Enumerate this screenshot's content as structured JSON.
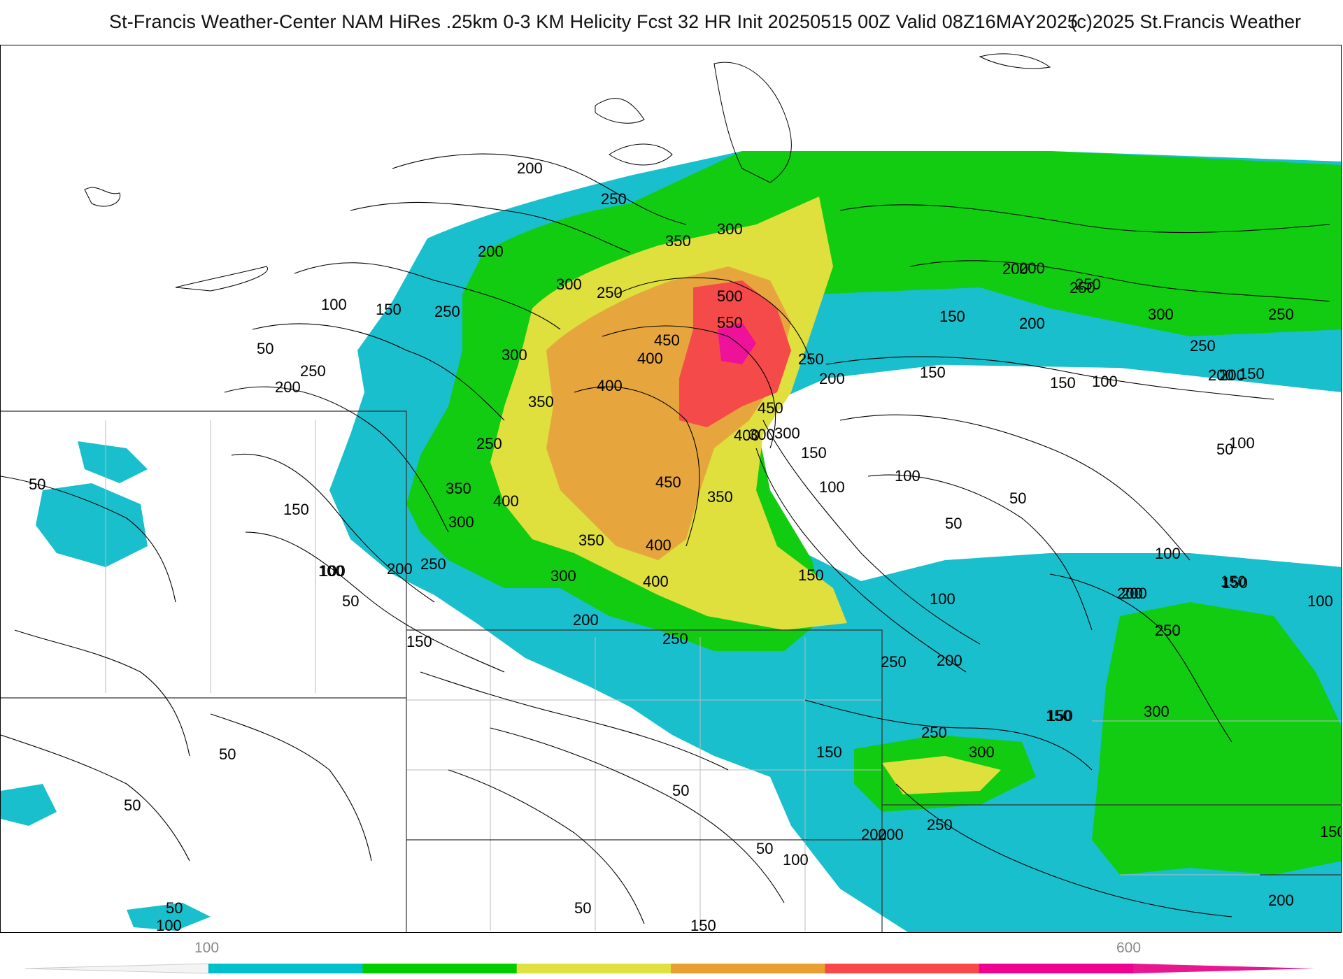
{
  "header": {
    "title": "St-Francis Weather-Center NAM HiRes .25km 0-3 KM Helicity Fcst 32 HR Init 20250515 00Z  Valid 08Z16MAY2025",
    "copyright": "(c)2025 St.Francis Weather"
  },
  "colorbar": {
    "min_label": "100",
    "max_label": "600",
    "colors": [
      "#00c0cc",
      "#00cc00",
      "#e0e040",
      "#e8a030",
      "#f84848",
      "#f00090"
    ]
  },
  "colors": {
    "band_150": "#19bfcc",
    "band_250": "#11cc11",
    "band_350": "#dfdf3e",
    "band_450": "#e6a63d",
    "band_500": "#f54a4a",
    "band_600": "#ee1199"
  },
  "contour_labels": [
    "200",
    "250",
    "350",
    "300",
    "200",
    "300",
    "250",
    "250",
    "100",
    "150",
    "50",
    "300",
    "250",
    "200",
    "500",
    "550",
    "450",
    "400",
    "400",
    "350",
    "250",
    "200",
    "300",
    "250",
    "450",
    "400",
    "300",
    "150",
    "350",
    "400",
    "450",
    "350",
    "300",
    "400",
    "350",
    "200",
    "250",
    "150",
    "50",
    "100",
    "150",
    "200",
    "300",
    "250",
    "400",
    "150",
    "100",
    "100",
    "50",
    "100",
    "100",
    "50",
    "50",
    "100",
    "150",
    "200",
    "300",
    "250",
    "100",
    "150",
    "200",
    "250",
    "150",
    "250",
    "300",
    "200",
    "150",
    "250",
    "200",
    "150",
    "200",
    "250",
    "200",
    "150",
    "50",
    "100",
    "150",
    "50",
    "50",
    "50",
    "50",
    "100",
    "50",
    "100",
    "50",
    "150",
    "250",
    "200",
    "150",
    "200",
    "300",
    "200",
    "250",
    "200",
    "250",
    "200",
    "150",
    "250",
    "100",
    "150"
  ]
}
